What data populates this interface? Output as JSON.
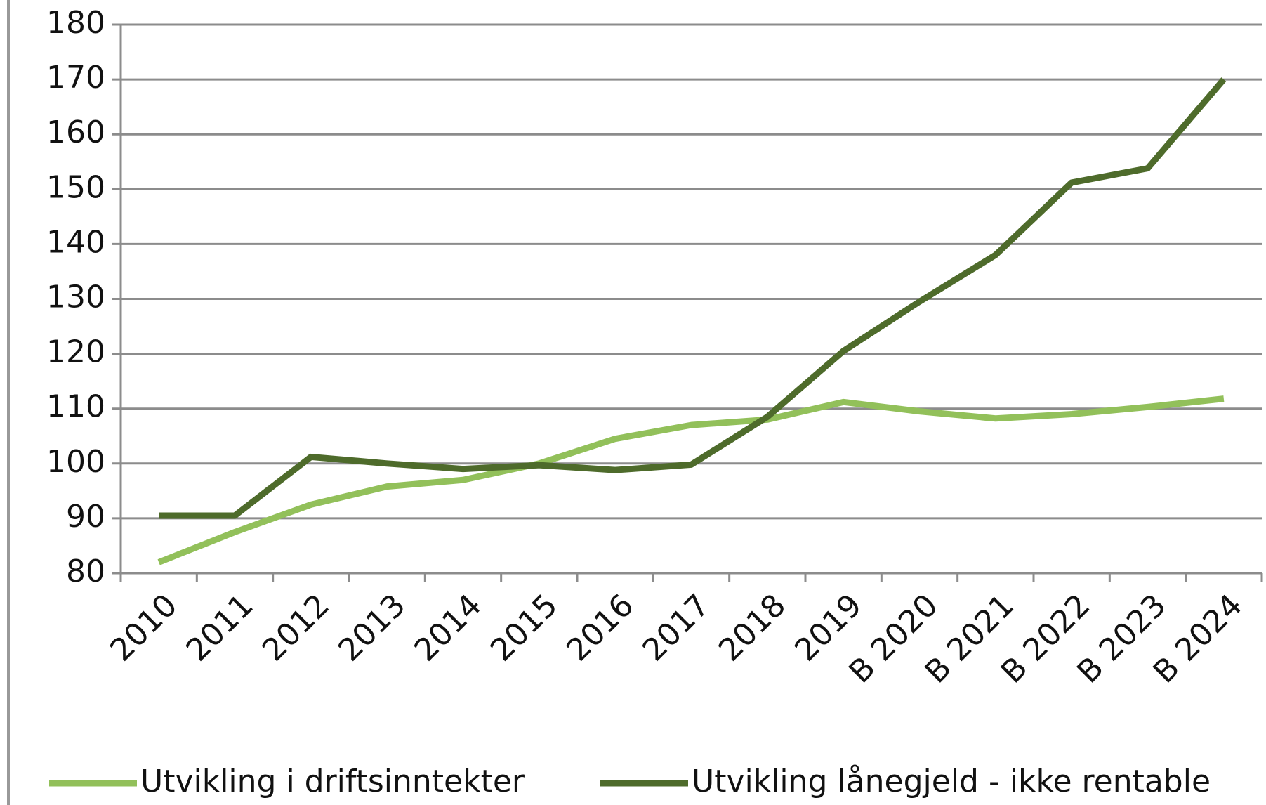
{
  "chart_data": {
    "type": "line",
    "categories": [
      "2010",
      "2011",
      "2012",
      "2013",
      "2014",
      "2015",
      "2016",
      "2017",
      "2018",
      "2019",
      "B 2020",
      "B 2021",
      "B 2022",
      "B 2023",
      "B 2024"
    ],
    "series": [
      {
        "name": "Utvikling i driftsinntekter",
        "color": "#92c05a",
        "values": [
          82,
          87.5,
          92.5,
          95.8,
          97,
          100,
          104.5,
          107,
          108,
          111.2,
          109.5,
          108.2,
          109,
          110.3,
          111.8
        ]
      },
      {
        "name": "Utvikling lånegjeld - ikke rentable",
        "color": "#4e6b2b",
        "values": [
          90.5,
          90.5,
          101.2,
          100,
          99,
          99.7,
          98.8,
          99.8,
          108.5,
          120.5,
          129.5,
          138,
          151.2,
          153.8,
          170
        ]
      }
    ],
    "ylim": [
      80,
      180
    ],
    "yticks": [
      80,
      90,
      100,
      110,
      120,
      130,
      140,
      150,
      160,
      170,
      180
    ],
    "grid": true,
    "legend": "bottom"
  }
}
